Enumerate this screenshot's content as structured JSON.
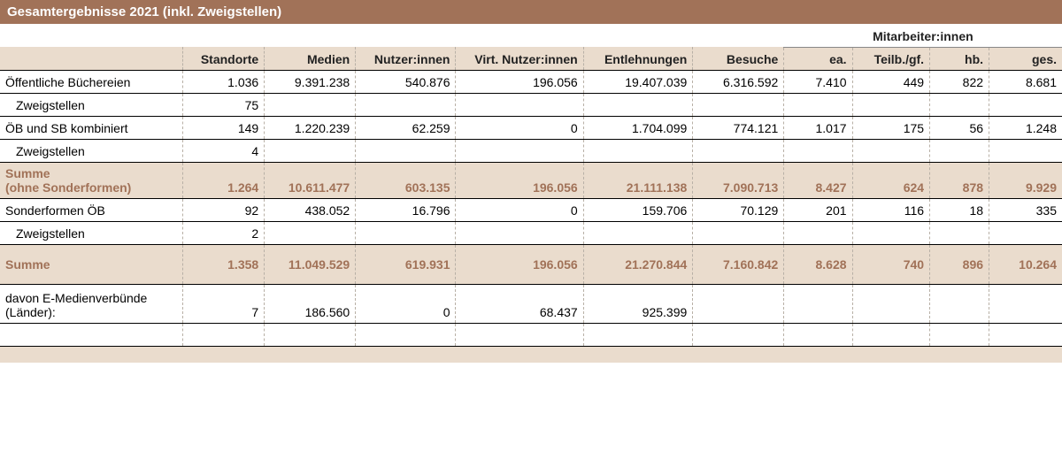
{
  "title": "Gesamtergebnisse 2021 (inkl. Zweigstellen)",
  "group_header": "Mitarbeiter:innen",
  "columns": [
    "Standorte",
    "Medien",
    "Nutzer:innen",
    "Virt. Nutzer:innen",
    "Entlehnungen",
    "Besuche",
    "ea.",
    "Teilb./gf.",
    "hb.",
    "ges."
  ],
  "rows": {
    "r1": {
      "label": "Öffentliche Büchereien",
      "c": [
        "1.036",
        "9.391.238",
        "540.876",
        "196.056",
        "19.407.039",
        "6.316.592",
        "7.410",
        "449",
        "822",
        "8.681"
      ]
    },
    "r2": {
      "label": "Zweigstellen",
      "c": [
        "75",
        "",
        "",
        "",
        "",
        "",
        "",
        "",
        "",
        ""
      ]
    },
    "r3": {
      "label": "ÖB und SB kombiniert",
      "c": [
        "149",
        "1.220.239",
        "62.259",
        "0",
        "1.704.099",
        "774.121",
        "1.017",
        "175",
        "56",
        "1.248"
      ]
    },
    "r4": {
      "label": "Zweigstellen",
      "c": [
        "4",
        "",
        "",
        "",
        "",
        "",
        "",
        "",
        "",
        ""
      ]
    },
    "sum1": {
      "label1": "Summe",
      "label2": "(ohne Sonderformen)",
      "c": [
        "1.264",
        "10.611.477",
        "603.135",
        "196.056",
        "21.111.138",
        "7.090.713",
        "8.427",
        "624",
        "878",
        "9.929"
      ]
    },
    "r5": {
      "label": "Sonderformen ÖB",
      "c": [
        "92",
        "438.052",
        "16.796",
        "0",
        "159.706",
        "70.129",
        "201",
        "116",
        "18",
        "335"
      ]
    },
    "r6": {
      "label": "Zweigstellen",
      "c": [
        "2",
        "",
        "",
        "",
        "",
        "",
        "",
        "",
        "",
        ""
      ]
    },
    "sum2": {
      "label": "Summe",
      "c": [
        "1.358",
        "11.049.529",
        "619.931",
        "196.056",
        "21.270.844",
        "7.160.842",
        "8.628",
        "740",
        "896",
        "10.264"
      ]
    },
    "r7": {
      "label1": "davon E-Medienverbünde",
      "label2": "(Länder):",
      "c": [
        "7",
        "186.560",
        "0",
        "68.437",
        "925.399",
        "",
        "",
        "",
        "",
        ""
      ]
    },
    "r8": {
      "label": "",
      "c": [
        "",
        "",
        "",
        "",
        "",
        "",
        "",
        "",
        "",
        ""
      ]
    }
  },
  "colors": {
    "brand": "#a17258",
    "band": "#eadccd"
  }
}
